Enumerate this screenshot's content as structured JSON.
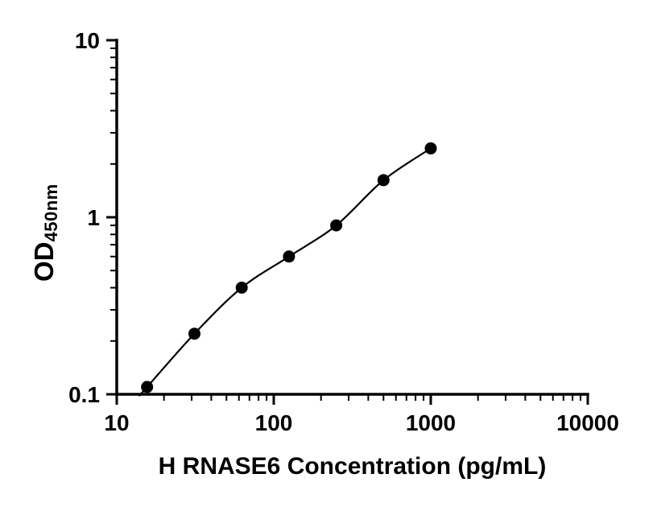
{
  "chart_data": {
    "type": "scatter",
    "title": "",
    "xlabel": "H RNASE6 Concentration (pg/mL)",
    "ylabel_main": "OD",
    "ylabel_sub": "450nm",
    "x": [
      15.6,
      31.25,
      62.5,
      125,
      250,
      500,
      1000
    ],
    "y": [
      0.11,
      0.22,
      0.4,
      0.6,
      0.9,
      1.62,
      2.45
    ],
    "xscale": "log",
    "yscale": "log",
    "xlim": [
      10,
      10000
    ],
    "ylim": [
      0.1,
      10
    ],
    "x_ticks": [
      10,
      100,
      1000,
      10000
    ],
    "x_tick_labels": [
      "10",
      "100",
      "1000",
      "10000"
    ],
    "y_ticks": [
      0.1,
      1,
      10
    ],
    "y_tick_labels": [
      "0.1",
      "1",
      "10"
    ],
    "grid": false,
    "legend": null,
    "marker_color": "#000000",
    "line_color": "#000000",
    "axis_color": "#000000"
  }
}
